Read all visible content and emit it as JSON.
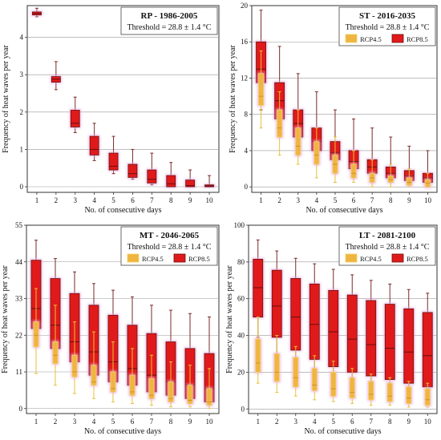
{
  "figure": {
    "colors": {
      "rcp45_fill": "#EFB541",
      "rcp45_edge": "#F4D060",
      "rcp85_fill": "#E01A1A",
      "rcp85_edge": "#6A1010",
      "glow": "#E9AEE0",
      "grid": "#999999"
    }
  },
  "chart_data": [
    {
      "type": "box",
      "title": "RP - 1986-2005",
      "threshold": "Threshold = 28.8 ± 1.4 °C",
      "xlabel": "No. of consecutive days",
      "ylabel": "Frequency of heat waves per year",
      "categories": [
        "1",
        "2",
        "3",
        "4",
        "5",
        "6",
        "7",
        "8",
        "9",
        "10"
      ],
      "ylim": [
        -0.15,
        4.85
      ],
      "yticks": [
        0,
        1,
        2,
        3,
        4
      ],
      "legend": false,
      "grid": true,
      "series": [
        {
          "key": "rcp85",
          "boxes": [
            {
              "min": 4.55,
              "q1": 4.6,
              "med": 4.64,
              "q3": 4.68,
              "max": 4.78
            },
            {
              "min": 2.6,
              "q1": 2.8,
              "med": 2.88,
              "q3": 2.95,
              "max": 3.35
            },
            {
              "min": 1.45,
              "q1": 1.6,
              "med": 1.7,
              "q3": 2.05,
              "max": 2.4
            },
            {
              "min": 0.7,
              "q1": 0.85,
              "med": 1.0,
              "q3": 1.35,
              "max": 1.7
            },
            {
              "min": 0.35,
              "q1": 0.45,
              "med": 0.55,
              "q3": 0.9,
              "max": 1.35
            },
            {
              "min": 0.2,
              "q1": 0.25,
              "med": 0.35,
              "q3": 0.6,
              "max": 1.0
            },
            {
              "min": 0.05,
              "q1": 0.1,
              "med": 0.2,
              "q3": 0.45,
              "max": 0.9
            },
            {
              "min": 0.0,
              "q1": 0.0,
              "med": 0.08,
              "q3": 0.3,
              "max": 0.65
            },
            {
              "min": 0.0,
              "q1": 0.0,
              "med": 0.03,
              "q3": 0.18,
              "max": 0.45
            },
            {
              "min": 0.0,
              "q1": 0.0,
              "med": 0.02,
              "q3": 0.05,
              "max": 0.3
            }
          ]
        }
      ]
    },
    {
      "type": "box",
      "title": "ST - 2016-2035",
      "threshold": "Threshold = 28.8 ± 1.4 °C",
      "xlabel": "No. of consecutive days",
      "ylabel": "Frequency of heat waves per year",
      "categories": [
        "1",
        "2",
        "3",
        "4",
        "5",
        "6",
        "7",
        "8",
        "9",
        "10"
      ],
      "ylim": [
        -0.6,
        20
      ],
      "yticks": [
        0,
        4,
        8,
        12,
        16,
        20
      ],
      "legend": true,
      "legend_position": "top-right",
      "grid": true,
      "series": [
        {
          "key": "rcp45",
          "name": "RCP4.5",
          "boxes": [
            {
              "min": 6.5,
              "q1": 9.0,
              "med": 10.0,
              "q3": 12.5,
              "max": 15.0
            },
            {
              "min": 3.5,
              "q1": 5.5,
              "med": 6.5,
              "q3": 8.5,
              "max": 10.5
            },
            {
              "min": 2.5,
              "q1": 3.5,
              "med": 4.5,
              "q3": 6.5,
              "max": 8.5
            },
            {
              "min": 1.0,
              "q1": 2.5,
              "med": 3.5,
              "q3": 5.0,
              "max": 6.5
            },
            {
              "min": 0.5,
              "q1": 1.5,
              "med": 2.5,
              "q3": 3.5,
              "max": 5.5
            },
            {
              "min": 0.5,
              "q1": 1.0,
              "med": 1.5,
              "q3": 2.5,
              "max": 4.0
            },
            {
              "min": 0.0,
              "q1": 0.5,
              "med": 1.0,
              "q3": 1.5,
              "max": 3.0
            },
            {
              "min": 0.0,
              "q1": 0.5,
              "med": 0.8,
              "q3": 1.2,
              "max": 2.5
            },
            {
              "min": 0.0,
              "q1": 0.2,
              "med": 0.5,
              "q3": 1.0,
              "max": 2.0
            },
            {
              "min": 0.0,
              "q1": 0.0,
              "med": 0.4,
              "q3": 0.8,
              "max": 1.5
            }
          ]
        },
        {
          "key": "rcp85",
          "name": "RCP8.5",
          "boxes": [
            {
              "min": 8.5,
              "q1": 11.5,
              "med": 13.0,
              "q3": 16.0,
              "max": 19.5
            },
            {
              "min": 5.5,
              "q1": 7.5,
              "med": 9.5,
              "q3": 11.5,
              "max": 15.5
            },
            {
              "min": 3.5,
              "q1": 5.5,
              "med": 7.0,
              "q3": 8.5,
              "max": 12.5
            },
            {
              "min": 2.5,
              "q1": 4.0,
              "med": 5.0,
              "q3": 6.5,
              "max": 10.5
            },
            {
              "min": 1.5,
              "q1": 3.0,
              "med": 3.8,
              "q3": 5.0,
              "max": 8.5
            },
            {
              "min": 1.0,
              "q1": 2.0,
              "med": 2.8,
              "q3": 4.0,
              "max": 7.5
            },
            {
              "min": 0.5,
              "q1": 1.5,
              "med": 2.2,
              "q3": 3.0,
              "max": 6.5
            },
            {
              "min": 0.5,
              "q1": 1.0,
              "med": 1.5,
              "q3": 2.2,
              "max": 5.5
            },
            {
              "min": 0.2,
              "q1": 0.7,
              "med": 1.2,
              "q3": 1.8,
              "max": 4.5
            },
            {
              "min": 0.0,
              "q1": 0.5,
              "med": 1.0,
              "q3": 1.5,
              "max": 4.0
            }
          ]
        }
      ]
    },
    {
      "type": "box",
      "title": "MT - 2046-2065",
      "threshold": "Threshold = 28.8 ± 1.4 °C",
      "xlabel": "No. of consecutive days",
      "ylabel": "Frequency of heat waves per year",
      "categories": [
        "1",
        "2",
        "3",
        "4",
        "5",
        "6",
        "7",
        "8",
        "9",
        "10"
      ],
      "ylim": [
        -1.5,
        55
      ],
      "yticks": [
        0,
        11,
        22,
        33,
        44,
        55
      ],
      "legend": true,
      "legend_position": "top-right",
      "grid": true,
      "series": [
        {
          "key": "rcp45",
          "name": "RCP4.5",
          "boxes": [
            {
              "min": 10.5,
              "q1": 18.5,
              "med": 22.0,
              "q3": 26.0,
              "max": 36.0
            },
            {
              "min": 7.0,
              "q1": 13.5,
              "med": 16.0,
              "q3": 20.0,
              "max": 31.0
            },
            {
              "min": 4.5,
              "q1": 9.5,
              "med": 11.0,
              "q3": 16.0,
              "max": 26.0
            },
            {
              "min": 3.0,
              "q1": 7.0,
              "med": 8.0,
              "q3": 13.0,
              "max": 23.0
            },
            {
              "min": 2.0,
              "q1": 5.0,
              "med": 6.0,
              "q3": 11.0,
              "max": 20.0
            },
            {
              "min": 1.5,
              "q1": 4.0,
              "med": 5.0,
              "q3": 10.0,
              "max": 18.0
            },
            {
              "min": 1.0,
              "q1": 3.0,
              "med": 4.0,
              "q3": 9.0,
              "max": 16.0
            },
            {
              "min": 0.5,
              "q1": 2.0,
              "med": 3.0,
              "q3": 8.0,
              "max": 14.0
            },
            {
              "min": 0.5,
              "q1": 1.5,
              "med": 2.5,
              "q3": 7.0,
              "max": 13.0
            },
            {
              "min": 0.0,
              "q1": 1.0,
              "med": 2.0,
              "q3": 6.0,
              "max": 12.0
            }
          ]
        },
        {
          "key": "rcp85",
          "name": "RCP8.5",
          "boxes": [
            {
              "min": 19.0,
              "q1": 24.0,
              "med": 30.0,
              "q3": 44.5,
              "max": 50.5
            },
            {
              "min": 14.0,
              "q1": 18.0,
              "med": 25.0,
              "q3": 39.0,
              "max": 45.0
            },
            {
              "min": 10.0,
              "q1": 14.0,
              "med": 20.0,
              "q3": 34.5,
              "max": 41.0
            },
            {
              "min": 7.5,
              "q1": 10.0,
              "med": 17.0,
              "q3": 31.0,
              "max": 37.5
            },
            {
              "min": 5.0,
              "q1": 8.0,
              "med": 14.0,
              "q3": 28.0,
              "max": 35.5
            },
            {
              "min": 4.0,
              "q1": 7.0,
              "med": 12.0,
              "q3": 25.0,
              "max": 33.5
            },
            {
              "min": 3.0,
              "q1": 5.0,
              "med": 10.0,
              "q3": 22.5,
              "max": 31.0
            },
            {
              "min": 2.0,
              "q1": 4.0,
              "med": 8.0,
              "q3": 20.0,
              "max": 29.5
            },
            {
              "min": 1.5,
              "q1": 3.0,
              "med": 7.0,
              "q3": 18.0,
              "max": 28.5
            },
            {
              "min": 1.0,
              "q1": 2.0,
              "med": 6.0,
              "q3": 16.5,
              "max": 27.5
            }
          ]
        }
      ]
    },
    {
      "type": "box",
      "title": "LT - 2081-2100",
      "threshold": "Threshold = 28.8 ± 1.4 °C",
      "xlabel": "No. of consecutive days",
      "ylabel": "Frequency of heat waves per year",
      "categories": [
        "1",
        "2",
        "3",
        "4",
        "5",
        "6",
        "7",
        "8",
        "9",
        "10"
      ],
      "ylim": [
        -2.5,
        100
      ],
      "yticks": [
        0,
        20,
        40,
        60,
        80,
        100
      ],
      "legend": true,
      "legend_position": "top-right",
      "grid": true,
      "series": [
        {
          "key": "rcp45",
          "name": "RCP4.5",
          "boxes": [
            {
              "min": 14.0,
              "q1": 20.0,
              "med": 25.0,
              "q3": 38.0,
              "max": 50.0
            },
            {
              "min": 9.0,
              "q1": 15.0,
              "med": 20.0,
              "q3": 30.0,
              "max": 40.0
            },
            {
              "min": 7.0,
              "q1": 12.0,
              "med": 17.0,
              "q3": 28.0,
              "max": 34.0
            },
            {
              "min": 5.0,
              "q1": 10.0,
              "med": 13.0,
              "q3": 22.0,
              "max": 29.0
            },
            {
              "min": 4.0,
              "q1": 7.0,
              "med": 11.0,
              "q3": 20.0,
              "max": 26.0
            },
            {
              "min": 3.0,
              "q1": 6.0,
              "med": 9.0,
              "q3": 17.0,
              "max": 22.0
            },
            {
              "min": 2.0,
              "q1": 5.0,
              "med": 8.0,
              "q3": 15.0,
              "max": 19.0
            },
            {
              "min": 2.0,
              "q1": 4.0,
              "med": 7.0,
              "q3": 14.0,
              "max": 17.0
            },
            {
              "min": 1.0,
              "q1": 3.0,
              "med": 6.0,
              "q3": 12.0,
              "max": 15.0
            },
            {
              "min": 1.0,
              "q1": 2.0,
              "med": 5.0,
              "q3": 11.0,
              "max": 14.0
            }
          ]
        },
        {
          "key": "rcp85",
          "name": "RCP8.5",
          "boxes": [
            {
              "min": 39.0,
              "q1": 50.0,
              "med": 66.0,
              "q3": 81.5,
              "max": 92.0
            },
            {
              "min": 30.0,
              "q1": 39.0,
              "med": 56.0,
              "q3": 75.5,
              "max": 86.0
            },
            {
              "min": 24.0,
              "q1": 32.0,
              "med": 50.0,
              "q3": 71.0,
              "max": 82.0
            },
            {
              "min": 21.0,
              "q1": 27.0,
              "med": 46.0,
              "q3": 68.0,
              "max": 79.0
            },
            {
              "min": 18.0,
              "q1": 23.0,
              "med": 42.0,
              "q3": 64.5,
              "max": 76.0
            },
            {
              "min": 15.0,
              "q1": 20.0,
              "med": 38.0,
              "q3": 62.0,
              "max": 73.0
            },
            {
              "min": 13.0,
              "q1": 18.0,
              "med": 35.0,
              "q3": 59.0,
              "max": 70.0
            },
            {
              "min": 11.0,
              "q1": 16.0,
              "med": 33.0,
              "q3": 57.0,
              "max": 68.0
            },
            {
              "min": 10.0,
              "q1": 14.0,
              "med": 31.0,
              "q3": 54.5,
              "max": 65.0
            },
            {
              "min": 9.0,
              "q1": 12.0,
              "med": 29.0,
              "q3": 52.5,
              "max": 63.0
            }
          ]
        }
      ]
    }
  ]
}
